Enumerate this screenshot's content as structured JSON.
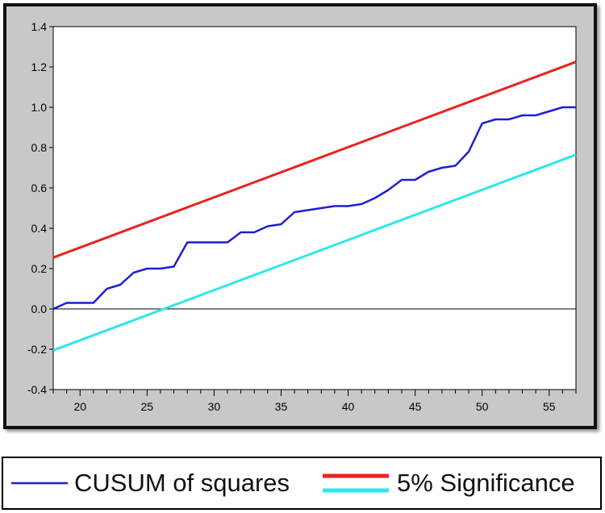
{
  "chart_data": {
    "type": "line",
    "xlim": [
      18,
      57
    ],
    "ylim": [
      -0.4,
      1.4
    ],
    "x_ticks": [
      20,
      25,
      30,
      35,
      40,
      45,
      50,
      55
    ],
    "y_ticks": [
      -0.4,
      -0.2,
      0.0,
      0.2,
      0.4,
      0.6,
      0.8,
      1.0,
      1.2,
      1.4
    ],
    "y_tick_labels": [
      "-0.4",
      "-0.2",
      "0.0",
      "0.2",
      "0.4",
      "0.6",
      "0.8",
      "1.0",
      "1.2",
      "1.4"
    ],
    "zero_line": true,
    "grid": false,
    "legend_position": "bottom",
    "series": [
      {
        "name": "CUSUM of squares",
        "color": "#1f1fd0",
        "x": [
          18,
          19,
          20,
          21,
          22,
          23,
          24,
          25,
          26,
          27,
          28,
          29,
          30,
          31,
          32,
          33,
          34,
          35,
          36,
          37,
          38,
          39,
          40,
          41,
          42,
          43,
          44,
          45,
          46,
          47,
          48,
          49,
          50,
          51,
          52,
          53,
          54,
          55,
          56,
          57
        ],
        "values": [
          0.0,
          0.03,
          0.03,
          0.03,
          0.1,
          0.12,
          0.18,
          0.2,
          0.2,
          0.21,
          0.33,
          0.33,
          0.33,
          0.33,
          0.38,
          0.38,
          0.41,
          0.42,
          0.48,
          0.49,
          0.5,
          0.51,
          0.51,
          0.52,
          0.55,
          0.59,
          0.64,
          0.64,
          0.68,
          0.7,
          0.71,
          0.78,
          0.92,
          0.94,
          0.94,
          0.96,
          0.96,
          0.98,
          1.0,
          1.0
        ]
      },
      {
        "name": "5% Significance",
        "color": "#e8231e",
        "x": [
          18,
          57
        ],
        "values": [
          0.255,
          1.225
        ]
      },
      {
        "name": "",
        "color": "#2ee6ec",
        "x": [
          18,
          57
        ],
        "values": [
          -0.205,
          0.765
        ]
      }
    ]
  },
  "legend": {
    "items": [
      {
        "label": "CUSUM of squares",
        "color": "#1f1fd0"
      },
      {
        "label": "5% Significance",
        "color": "#e8231e",
        "color2": "#2ee6ec"
      }
    ]
  }
}
